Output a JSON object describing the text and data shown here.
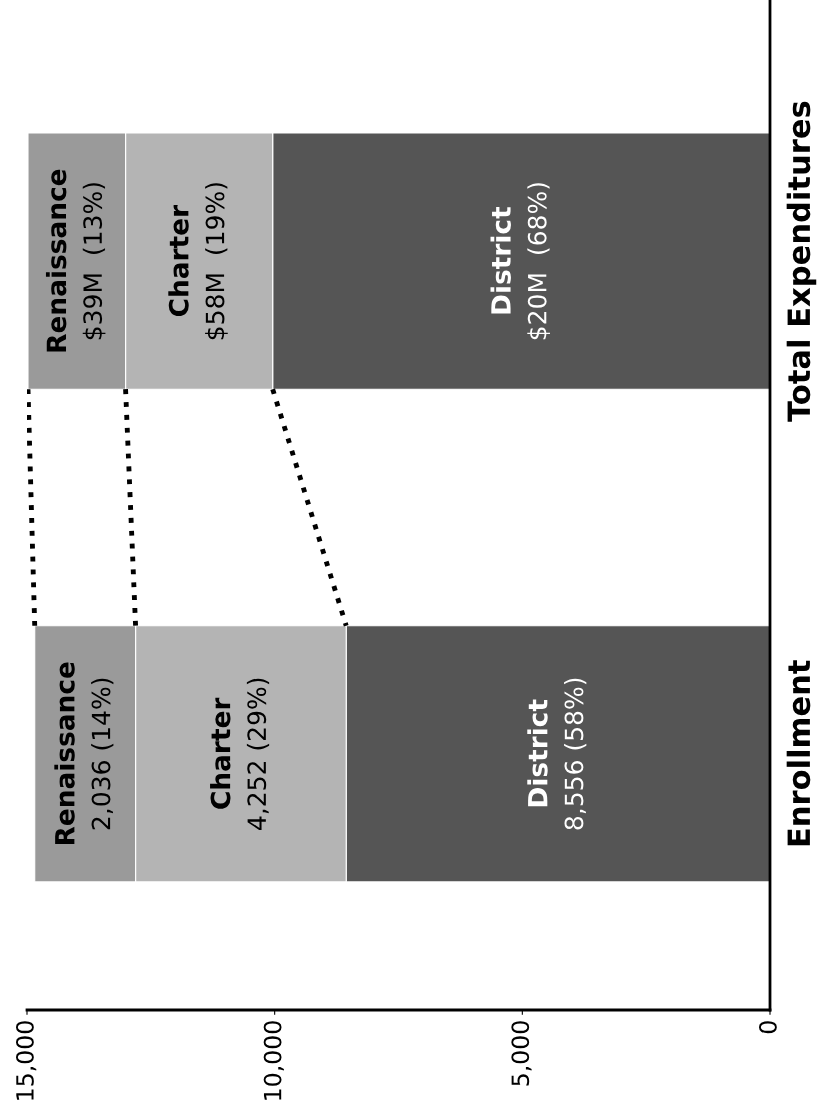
{
  "chart_data": {
    "type": "bar",
    "orientation": "horizontal",
    "stacked": true,
    "categories": [
      "Total Expenditures",
      "Enrollment"
    ],
    "series": [
      {
        "name": "District",
        "color": "#555555",
        "values": [
          10040,
          8556
        ],
        "value_labels": [
          null,
          "8,556 (58%)"
        ]
      },
      {
        "name": "Charter",
        "color": "#b4b4b4",
        "values": [
          2970,
          4252
        ],
        "value_labels": [
          null,
          "4,252 (29%)"
        ]
      },
      {
        "name": "Renaissance",
        "color": "#9a9a9a",
        "values": [
          1970,
          2036
        ],
        "value_labels": [
          null,
          "2,036 (14%)"
        ]
      }
    ],
    "annotations": [
      "$20M  (68%)",
      "$58M  (19%)",
      "$39M  (13%)"
    ],
    "xlim": [
      15000,
      0
    ],
    "xticks": [
      0,
      {
        "value": 5000,
        "label": "5,000"
      },
      {
        "value": 10000,
        "label": "10,000"
      },
      {
        "value": 15000,
        "label": "15,000"
      }
    ],
    "line_style": "dotted",
    "grid": false,
    "legend": false
  }
}
